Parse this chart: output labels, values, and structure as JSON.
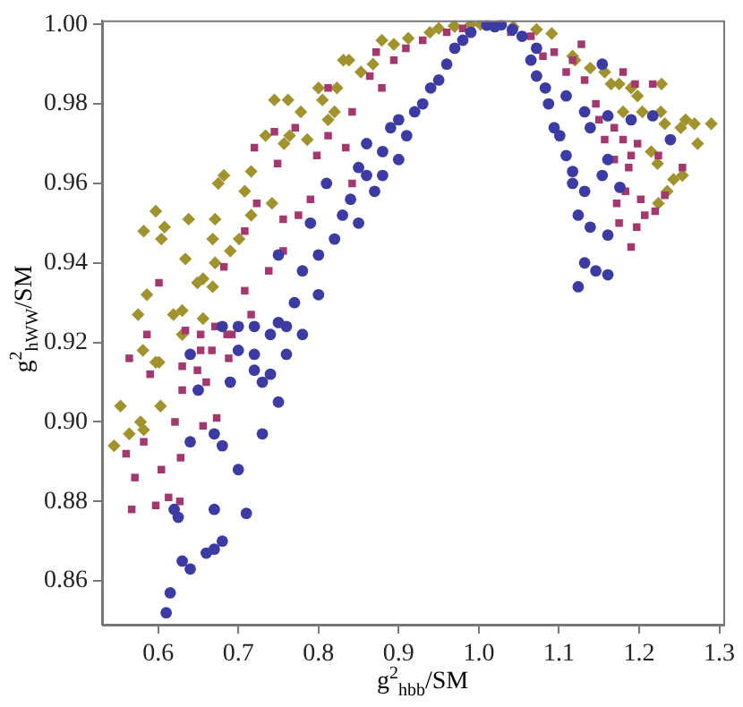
{
  "chart_data": {
    "type": "scatter",
    "xlabel": "g$^{2}$$_{hbb}$/SM",
    "ylabel": "g$^{2}$$_{hWW}$/SM",
    "xlim": [
      0.53,
      1.305
    ],
    "ylim": [
      0.849,
      1.001
    ],
    "xticks": [
      {
        "value": 0.6,
        "label": "0.6"
      },
      {
        "value": 0.7,
        "label": "0.7"
      },
      {
        "value": 0.8,
        "label": "0.8"
      },
      {
        "value": 0.9,
        "label": "0.9"
      },
      {
        "value": 1.0,
        "label": "1.0"
      },
      {
        "value": 1.1,
        "label": "1.1"
      },
      {
        "value": 1.2,
        "label": "1.2"
      },
      {
        "value": 1.3,
        "label": "1.3"
      }
    ],
    "yticks": [
      {
        "value": 0.86,
        "label": "0.86"
      },
      {
        "value": 0.88,
        "label": "0.88"
      },
      {
        "value": 0.9,
        "label": "0.90"
      },
      {
        "value": 0.92,
        "label": "0.92"
      },
      {
        "value": 0.94,
        "label": "0.94"
      },
      {
        "value": 0.96,
        "label": "0.96"
      },
      {
        "value": 0.98,
        "label": "0.98"
      },
      {
        "value": 1.0,
        "label": "1.00"
      }
    ],
    "grid": false,
    "legend": false,
    "series": [
      {
        "color": "#3b3ba3",
        "marker": "circle",
        "x": [
          0.61,
          0.615,
          0.62,
          0.625,
          0.63,
          0.64,
          0.66,
          0.67,
          0.68,
          0.67,
          0.71,
          0.7,
          0.64,
          0.67,
          0.68,
          0.65,
          0.64,
          0.69,
          0.72,
          0.73,
          0.73,
          0.75,
          0.74,
          0.72,
          0.76,
          0.74,
          0.76,
          0.78,
          0.75,
          0.72,
          0.7,
          0.68,
          0.7,
          0.77,
          0.8,
          0.78,
          0.75,
          0.8,
          0.82,
          0.85,
          0.84,
          0.87,
          0.88,
          0.85,
          0.88,
          0.9,
          0.91,
          0.9,
          0.93,
          0.94,
          0.95,
          0.96,
          0.97,
          0.98,
          0.99,
          0.86,
          0.83,
          0.92,
          0.89,
          0.86,
          0.81,
          0.79,
          1.01,
          1.02,
          1.028,
          1.042,
          1.054,
          1.065,
          1.072,
          1.072,
          1.083,
          1.087,
          1.094,
          1.101,
          1.109,
          1.117,
          1.117,
          1.132,
          1.124,
          1.139,
          1.161,
          1.132,
          1.124,
          1.146,
          1.161,
          1.154,
          1.176,
          1.161,
          1.139,
          1.161,
          1.19,
          1.217,
          1.239,
          1.109,
          1.132,
          1.154
        ],
        "values": [
          0.852,
          0.857,
          0.878,
          0.876,
          0.865,
          0.863,
          0.867,
          0.868,
          0.87,
          0.878,
          0.877,
          0.888,
          0.895,
          0.897,
          0.894,
          0.908,
          0.917,
          0.91,
          0.913,
          0.897,
          0.91,
          0.905,
          0.912,
          0.917,
          0.917,
          0.922,
          0.924,
          0.922,
          0.925,
          0.924,
          0.924,
          0.924,
          0.918,
          0.93,
          0.932,
          0.938,
          0.942,
          0.942,
          0.946,
          0.95,
          0.956,
          0.958,
          0.962,
          0.964,
          0.968,
          0.966,
          0.972,
          0.976,
          0.98,
          0.984,
          0.986,
          0.99,
          0.994,
          0.996,
          0.998,
          0.962,
          0.952,
          0.978,
          0.974,
          0.97,
          0.96,
          0.95,
          0.9998,
          0.9994,
          0.9999,
          0.9987,
          0.997,
          0.991,
          0.987,
          0.994,
          0.984,
          0.98,
          0.974,
          0.972,
          0.967,
          0.963,
          0.96,
          0.958,
          0.952,
          0.949,
          0.947,
          0.94,
          0.934,
          0.938,
          0.937,
          0.962,
          0.959,
          0.966,
          0.974,
          0.977,
          0.976,
          0.977,
          0.971,
          0.982,
          0.978,
          0.99
        ]
      },
      {
        "color": "#a3386e",
        "marker": "square",
        "x": [
          0.601,
          0.634,
          0.653,
          0.682,
          0.708,
          0.723,
          0.749,
          0.72,
          0.745,
          0.771,
          0.798,
          0.812,
          0.812,
          0.842,
          0.864,
          0.879,
          0.872,
          0.894,
          0.909,
          0.756,
          0.775,
          0.79,
          0.738,
          0.756,
          0.716,
          0.708,
          0.671,
          0.686,
          0.842,
          0.834,
          0.564,
          0.586,
          0.59,
          0.63,
          0.653,
          0.649,
          0.66,
          0.63,
          0.621,
          0.582,
          0.56,
          0.571,
          0.604,
          0.567,
          0.597,
          0.613,
          0.627,
          0.628,
          0.656,
          0.673,
          0.688,
          0.692,
          0.667,
          0.93,
          0.96,
          0.98,
          1.04,
          1.128,
          1.08,
          1.109,
          1.132,
          1.146,
          1.15,
          1.169,
          1.18,
          1.195,
          1.217,
          1.157,
          1.18,
          1.198,
          1.19,
          1.169,
          1.187,
          1.224,
          1.254,
          1.183,
          1.202,
          1.232,
          1.172,
          1.207,
          1.22,
          1.175,
          1.197,
          1.19,
          1.065,
          1.094,
          1.117
        ],
        "values": [
          0.935,
          0.923,
          0.918,
          0.939,
          0.948,
          0.955,
          0.965,
          0.969,
          0.973,
          0.974,
          0.967,
          0.972,
          0.984,
          0.978,
          0.987,
          0.984,
          0.993,
          0.991,
          0.994,
          0.951,
          0.952,
          0.956,
          0.938,
          0.943,
          0.927,
          0.933,
          0.924,
          0.922,
          0.96,
          0.969,
          0.916,
          0.922,
          0.912,
          0.914,
          0.922,
          0.913,
          0.91,
          0.908,
          0.9,
          0.895,
          0.892,
          0.886,
          0.888,
          0.878,
          0.879,
          0.881,
          0.88,
          0.891,
          0.899,
          0.901,
          0.916,
          0.922,
          0.918,
          0.996,
          0.998,
          0.999,
          0.998,
          0.995,
          0.992,
          0.988,
          0.986,
          0.98,
          0.976,
          0.974,
          0.988,
          0.985,
          0.985,
          0.971,
          0.971,
          0.97,
          0.967,
          0.966,
          0.964,
          0.967,
          0.964,
          0.958,
          0.956,
          0.957,
          0.955,
          0.952,
          0.953,
          0.95,
          0.949,
          0.944,
          0.997,
          0.993,
          0.991
        ]
      },
      {
        "color": "#a0922d",
        "marker": "diamond",
        "x": [
          0.582,
          0.597,
          0.608,
          0.604,
          0.634,
          0.638,
          0.671,
          0.675,
          0.682,
          0.708,
          0.716,
          0.734,
          0.757,
          0.764,
          0.786,
          0.745,
          0.762,
          0.778,
          0.8,
          0.805,
          0.823,
          0.82,
          0.812,
          0.831,
          0.838,
          0.853,
          0.868,
          0.879,
          0.894,
          0.912,
          0.668,
          0.656,
          0.671,
          0.69,
          0.701,
          0.716,
          0.742,
          0.586,
          0.575,
          0.619,
          0.63,
          0.656,
          0.649,
          0.668,
          0.63,
          0.581,
          0.597,
          0.601,
          0.553,
          0.603,
          0.578,
          0.564,
          0.582,
          0.545,
          0.95,
          0.97,
          0.99,
          0.939,
          0.969,
          1.002,
          1.043,
          1.072,
          1.091,
          1.117,
          1.12,
          1.139,
          1.157,
          1.165,
          1.175,
          1.19,
          1.198,
          1.228,
          1.18,
          1.204,
          1.227,
          1.232,
          1.258,
          1.269,
          1.29,
          1.252,
          1.273,
          1.215,
          1.223,
          1.254,
          1.243,
          1.235,
          1.224
        ],
        "values": [
          0.948,
          0.953,
          0.949,
          0.946,
          0.941,
          0.951,
          0.951,
          0.96,
          0.962,
          0.958,
          0.963,
          0.972,
          0.97,
          0.972,
          0.971,
          0.981,
          0.981,
          0.978,
          0.984,
          0.981,
          0.984,
          0.978,
          0.976,
          0.991,
          0.991,
          0.988,
          0.99,
          0.996,
          0.995,
          0.9965,
          0.946,
          0.936,
          0.94,
          0.943,
          0.946,
          0.952,
          0.955,
          0.932,
          0.927,
          0.927,
          0.928,
          0.926,
          0.935,
          0.934,
          0.922,
          0.918,
          0.915,
          0.915,
          0.904,
          0.904,
          0.9,
          0.897,
          0.898,
          0.894,
          0.999,
          0.9995,
          1.0,
          0.998,
          0.9996,
          1.0,
          0.9994,
          0.9987,
          0.9977,
          0.992,
          0.991,
          0.989,
          0.988,
          0.985,
          0.985,
          0.984,
          0.982,
          0.985,
          0.978,
          0.978,
          0.978,
          0.975,
          0.976,
          0.975,
          0.975,
          0.974,
          0.97,
          0.968,
          0.965,
          0.962,
          0.961,
          0.958,
          0.955
        ]
      }
    ]
  }
}
